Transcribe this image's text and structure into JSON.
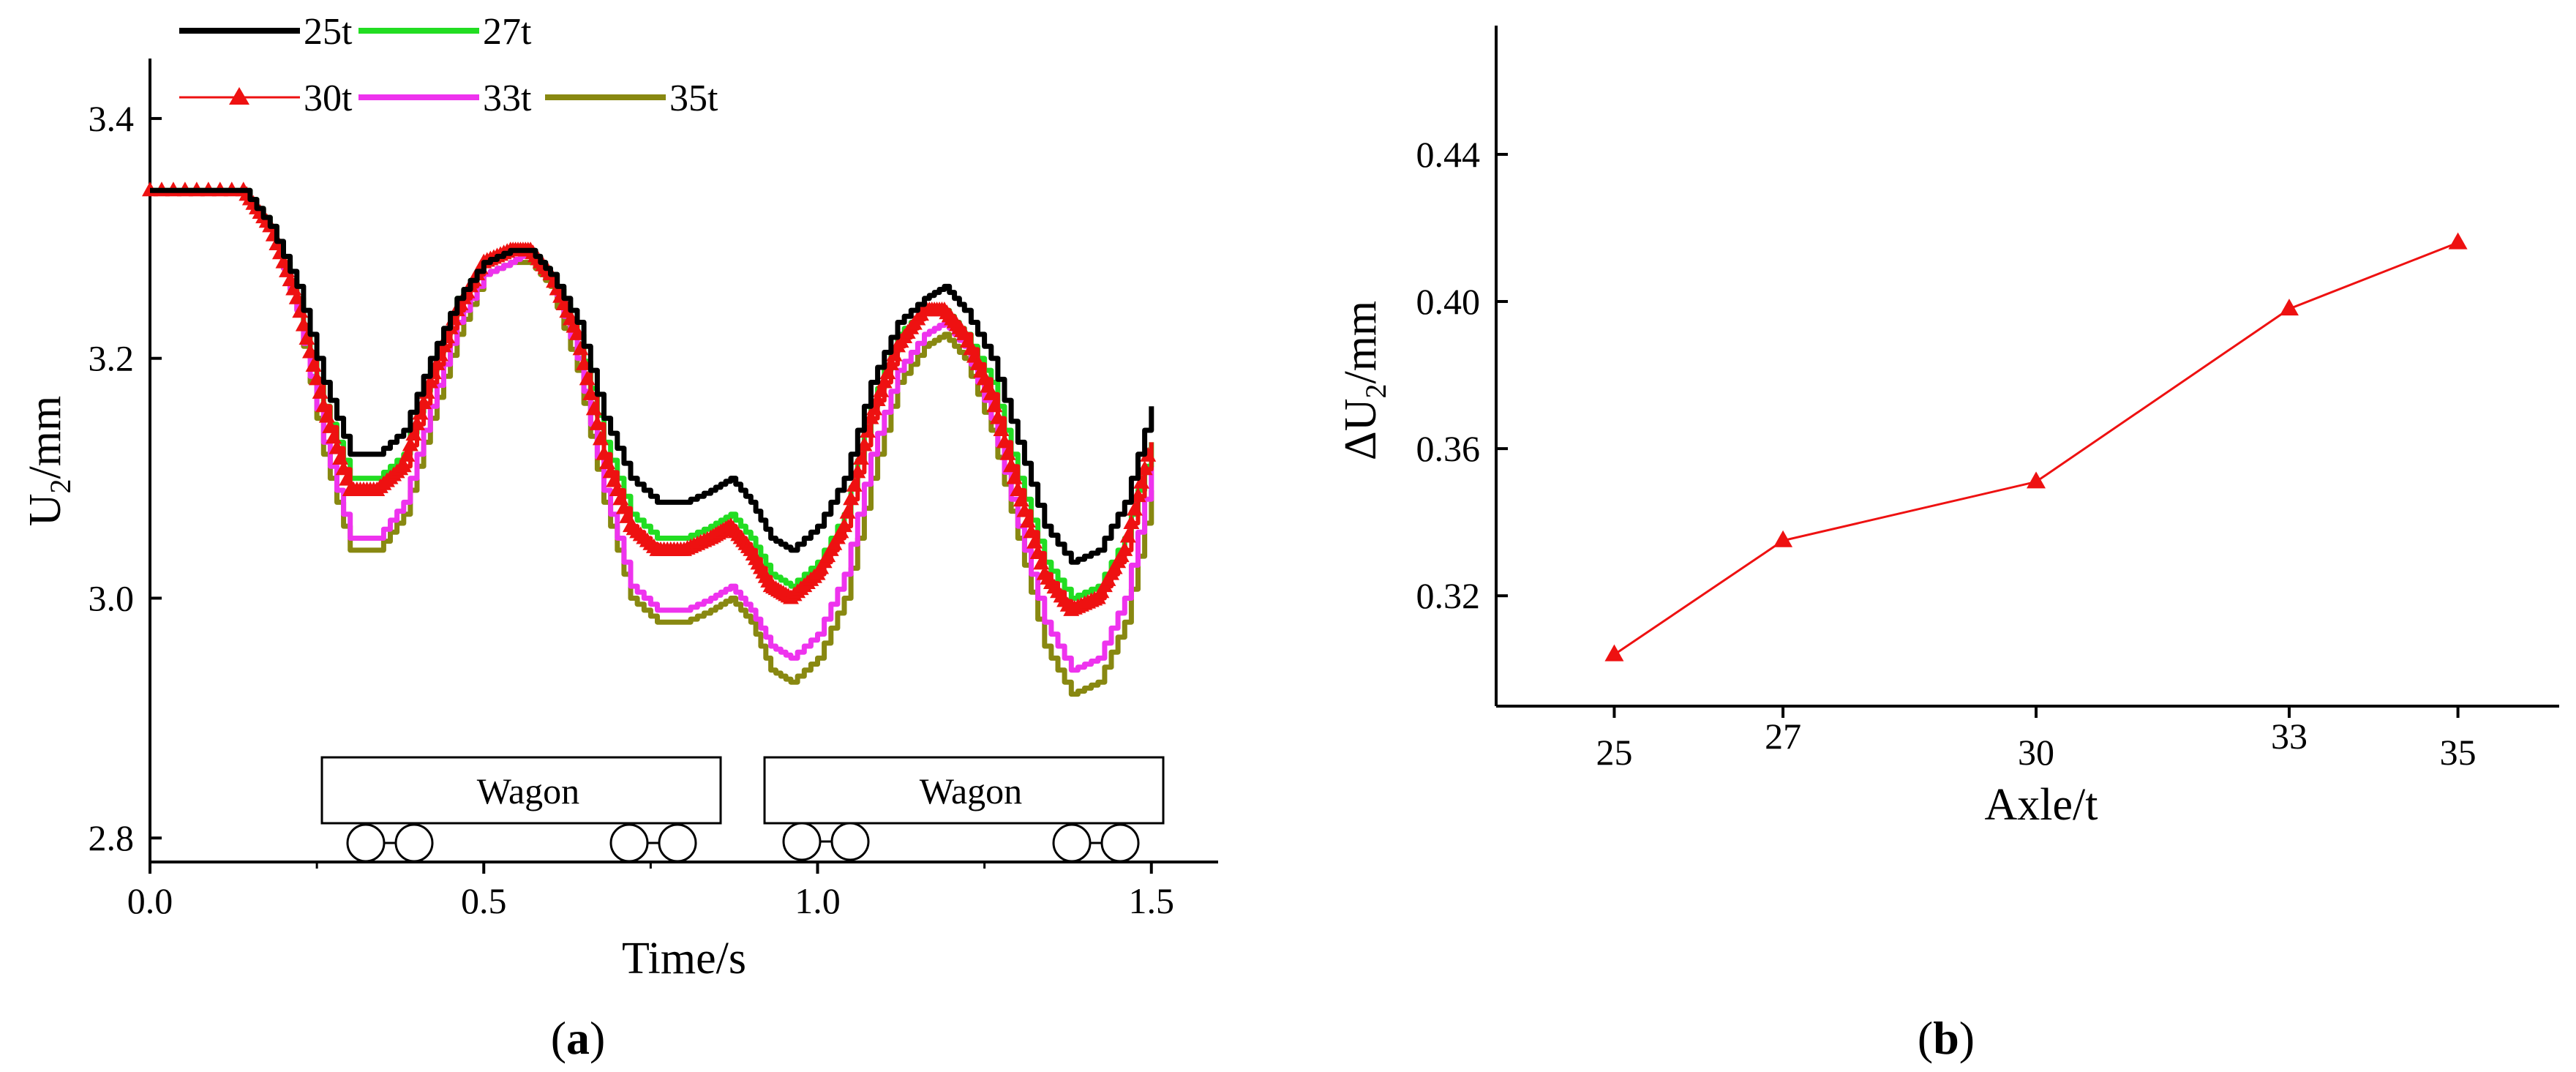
{
  "chart_data": [
    {
      "panel": "a",
      "type": "line",
      "label": "(a)",
      "label_letter": "a",
      "xlabel": "Time/s",
      "ylabel_main": "U",
      "ylabel_sub": "2",
      "ylabel_unit": "/mm",
      "xlim": [
        0.0,
        1.6
      ],
      "ylim": [
        2.78,
        3.45
      ],
      "xticks": [
        "0.0",
        "0.5",
        "1.0",
        "1.5"
      ],
      "yticks": [
        "2.8",
        "3.0",
        "3.2",
        "3.4"
      ],
      "wagons": [
        "Wagon",
        "Wagon"
      ],
      "series": [
        {
          "name": "25t",
          "color": "#000000",
          "marker": "none",
          "x": [
            0.0,
            0.14,
            0.18,
            0.22,
            0.26,
            0.3,
            0.34,
            0.38,
            0.42,
            0.46,
            0.5,
            0.54,
            0.57,
            0.6,
            0.64,
            0.68,
            0.72,
            0.76,
            0.8,
            0.84,
            0.87,
            0.9,
            0.93,
            0.96,
            1.0,
            1.04,
            1.08,
            1.12,
            1.16,
            1.19,
            1.22,
            1.26,
            1.3,
            1.34,
            1.38,
            1.42,
            1.46,
            1.5
          ],
          "y": [
            3.34,
            3.34,
            3.31,
            3.26,
            3.18,
            3.12,
            3.12,
            3.14,
            3.2,
            3.25,
            3.28,
            3.29,
            3.29,
            3.27,
            3.23,
            3.15,
            3.1,
            3.08,
            3.08,
            3.09,
            3.1,
            3.08,
            3.05,
            3.04,
            3.06,
            3.1,
            3.18,
            3.23,
            3.25,
            3.26,
            3.24,
            3.2,
            3.13,
            3.06,
            3.03,
            3.04,
            3.08,
            3.16
          ]
        },
        {
          "name": "27t",
          "color": "#22dd22",
          "marker": "none",
          "x": [
            0.0,
            0.14,
            0.18,
            0.22,
            0.26,
            0.3,
            0.34,
            0.38,
            0.42,
            0.46,
            0.5,
            0.54,
            0.57,
            0.6,
            0.64,
            0.68,
            0.72,
            0.76,
            0.8,
            0.84,
            0.87,
            0.9,
            0.93,
            0.96,
            1.0,
            1.04,
            1.08,
            1.12,
            1.16,
            1.19,
            1.22,
            1.26,
            1.3,
            1.34,
            1.38,
            1.42,
            1.46,
            1.5
          ],
          "y": [
            3.34,
            3.34,
            3.31,
            3.25,
            3.16,
            3.1,
            3.1,
            3.12,
            3.19,
            3.25,
            3.28,
            3.29,
            3.29,
            3.27,
            3.22,
            3.13,
            3.07,
            3.05,
            3.05,
            3.06,
            3.07,
            3.05,
            3.02,
            3.01,
            3.03,
            3.07,
            3.16,
            3.22,
            3.24,
            3.24,
            3.22,
            3.18,
            3.1,
            3.03,
            3.0,
            3.01,
            3.05,
            3.13
          ]
        },
        {
          "name": "30t",
          "color": "#ee1111",
          "marker": "triangle",
          "x": [
            0.0,
            0.14,
            0.18,
            0.22,
            0.26,
            0.3,
            0.34,
            0.38,
            0.42,
            0.46,
            0.5,
            0.54,
            0.57,
            0.6,
            0.64,
            0.68,
            0.72,
            0.76,
            0.8,
            0.84,
            0.87,
            0.9,
            0.93,
            0.96,
            1.0,
            1.04,
            1.08,
            1.12,
            1.16,
            1.19,
            1.22,
            1.26,
            1.3,
            1.34,
            1.38,
            1.42,
            1.46,
            1.5
          ],
          "y": [
            3.34,
            3.34,
            3.31,
            3.25,
            3.16,
            3.09,
            3.09,
            3.11,
            3.18,
            3.24,
            3.28,
            3.29,
            3.29,
            3.27,
            3.22,
            3.12,
            3.06,
            3.04,
            3.04,
            3.05,
            3.06,
            3.04,
            3.01,
            3.0,
            3.02,
            3.06,
            3.15,
            3.21,
            3.24,
            3.24,
            3.22,
            3.17,
            3.09,
            3.02,
            2.99,
            3.0,
            3.04,
            3.13
          ]
        },
        {
          "name": "33t",
          "color": "#ee33ee",
          "marker": "none",
          "x": [
            0.0,
            0.14,
            0.18,
            0.22,
            0.26,
            0.3,
            0.34,
            0.38,
            0.42,
            0.46,
            0.5,
            0.54,
            0.57,
            0.6,
            0.64,
            0.68,
            0.72,
            0.76,
            0.8,
            0.84,
            0.87,
            0.9,
            0.93,
            0.96,
            1.0,
            1.04,
            1.08,
            1.12,
            1.16,
            1.19,
            1.22,
            1.26,
            1.3,
            1.34,
            1.38,
            1.42,
            1.46,
            1.5
          ],
          "y": [
            3.34,
            3.34,
            3.31,
            3.24,
            3.13,
            3.05,
            3.05,
            3.08,
            3.16,
            3.23,
            3.27,
            3.28,
            3.29,
            3.27,
            3.2,
            3.09,
            3.01,
            2.99,
            2.99,
            3.0,
            3.01,
            2.99,
            2.96,
            2.95,
            2.97,
            3.02,
            3.12,
            3.19,
            3.22,
            3.23,
            3.21,
            3.15,
            3.06,
            2.98,
            2.94,
            2.95,
            3.0,
            3.11
          ]
        },
        {
          "name": "35t",
          "color": "#888811",
          "marker": "none",
          "x": [
            0.0,
            0.14,
            0.18,
            0.22,
            0.26,
            0.3,
            0.34,
            0.38,
            0.42,
            0.46,
            0.5,
            0.54,
            0.57,
            0.6,
            0.64,
            0.68,
            0.72,
            0.76,
            0.8,
            0.84,
            0.87,
            0.9,
            0.93,
            0.96,
            1.0,
            1.04,
            1.08,
            1.12,
            1.16,
            1.19,
            1.22,
            1.26,
            1.3,
            1.34,
            1.38,
            1.42,
            1.46,
            1.5
          ],
          "y": [
            3.34,
            3.34,
            3.31,
            3.24,
            3.12,
            3.04,
            3.04,
            3.07,
            3.15,
            3.22,
            3.27,
            3.28,
            3.28,
            3.26,
            3.19,
            3.08,
            3.0,
            2.98,
            2.98,
            2.99,
            3.0,
            2.98,
            2.94,
            2.93,
            2.95,
            3.0,
            3.1,
            3.18,
            3.21,
            3.22,
            3.2,
            3.14,
            3.05,
            2.96,
            2.92,
            2.93,
            2.98,
            3.09
          ]
        }
      ]
    },
    {
      "panel": "b",
      "type": "line",
      "label": "(b)",
      "label_letter": "b",
      "xlabel": "Axle/t",
      "ylabel_main": "ΔU",
      "ylabel_sub": "2",
      "ylabel_unit": "/mm",
      "xlim": [
        23.6,
        36.2
      ],
      "ylim": [
        0.29,
        0.475
      ],
      "xticks": [
        "25",
        "27",
        "30",
        "33",
        "35"
      ],
      "xtick_values": [
        25,
        27,
        30,
        33,
        35
      ],
      "yticks": [
        "0.32",
        "0.36",
        "0.40",
        "0.44"
      ],
      "ytick_values": [
        0.32,
        0.36,
        0.4,
        0.44
      ],
      "series": [
        {
          "name": "ΔU2",
          "color": "#ee1111",
          "marker": "triangle",
          "x": [
            25,
            27,
            30,
            33,
            35
          ],
          "y": [
            0.304,
            0.335,
            0.351,
            0.398,
            0.416
          ]
        }
      ]
    }
  ]
}
